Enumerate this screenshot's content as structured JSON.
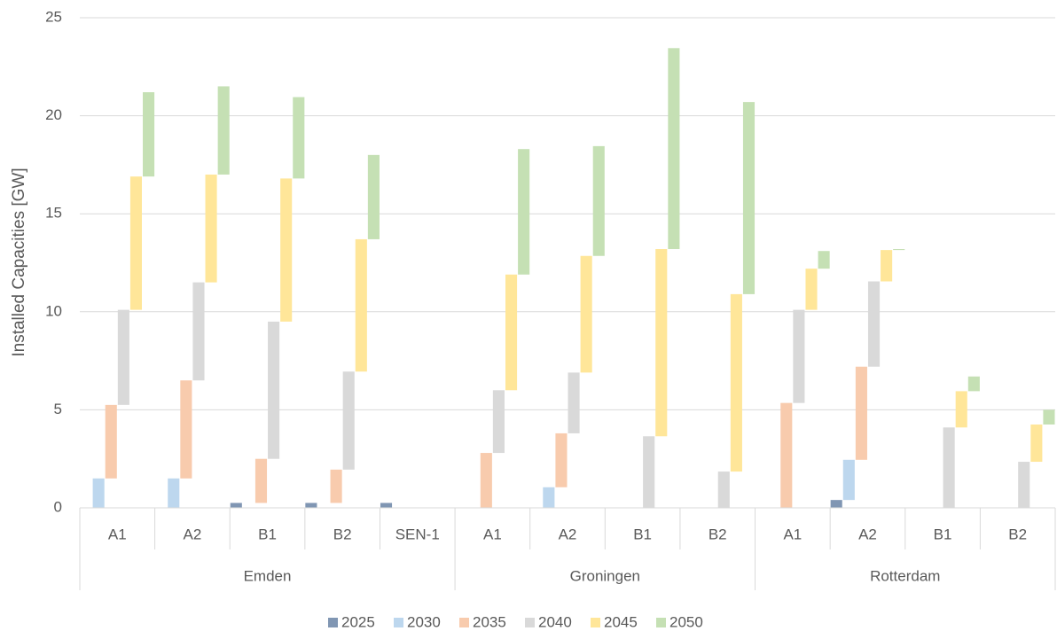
{
  "chart_data": {
    "type": "stacked-bar-staggered",
    "y_label": "Installed Capacities [GW]",
    "groups": [
      {
        "name": "Emden",
        "categories": [
          "A1",
          "A2",
          "B1",
          "B2",
          "SEN-1"
        ]
      },
      {
        "name": "Groningen",
        "categories": [
          "A1",
          "A2",
          "B1",
          "B2"
        ]
      },
      {
        "name": "Rotterdam",
        "categories": [
          "A1",
          "A2",
          "B1",
          "B2"
        ]
      }
    ],
    "series": [
      {
        "name": "2025",
        "color": "#8096b3",
        "values": [
          0,
          0,
          0.25,
          0.25,
          0.25,
          0,
          0,
          0,
          0,
          0,
          0.4,
          0,
          0
        ]
      },
      {
        "name": "2030",
        "color": "#bdd7ee",
        "values": [
          1.5,
          1.5,
          0,
          0,
          0,
          0,
          1.05,
          0,
          0,
          0,
          2.05,
          0,
          0
        ]
      },
      {
        "name": "2035",
        "color": "#f8cbad",
        "values": [
          3.75,
          5.0,
          2.25,
          1.7,
          0,
          2.8,
          2.75,
          0,
          0,
          5.35,
          4.75,
          0,
          0
        ]
      },
      {
        "name": "2040",
        "color": "#d9d9d9",
        "values": [
          4.85,
          5.0,
          7.0,
          5.0,
          0,
          3.2,
          3.1,
          3.65,
          1.85,
          4.75,
          4.35,
          4.1,
          2.35
        ]
      },
      {
        "name": "2045",
        "color": "#ffe699",
        "values": [
          6.8,
          5.5,
          7.3,
          6.75,
          0,
          5.9,
          5.95,
          9.55,
          9.05,
          2.1,
          1.6,
          1.85,
          1.9
        ]
      },
      {
        "name": "2050",
        "color": "#c5e0b4",
        "values": [
          4.3,
          4.5,
          4.15,
          4.3,
          0,
          6.4,
          5.6,
          10.25,
          9.8,
          0.9,
          0.05,
          0.75,
          0.75
        ]
      }
    ],
    "ylim": [
      0,
      25
    ],
    "yticks": [
      0,
      5,
      10,
      15,
      20,
      25
    ],
    "grid": true
  }
}
